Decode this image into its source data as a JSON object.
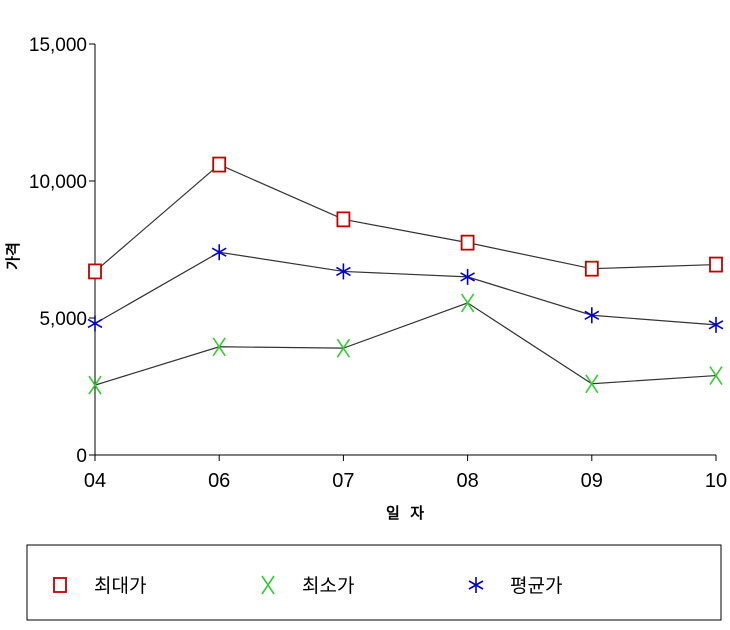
{
  "chart_data": {
    "type": "line",
    "xlabel": "일  자",
    "ylabel": "가격",
    "categories": [
      "04",
      "06",
      "07",
      "08",
      "09",
      "10"
    ],
    "yticks": [
      "0",
      "5,000",
      "10,000",
      "15,000"
    ],
    "ylim": [
      0,
      15000
    ],
    "grid": false,
    "legend_position": "bottom",
    "series": [
      {
        "name": "최대가",
        "marker": "square",
        "color": "#c00000",
        "values": [
          6700,
          10600,
          8600,
          7750,
          6800,
          6950
        ]
      },
      {
        "name": "최소가",
        "marker": "x",
        "color": "#33cc33",
        "values": [
          2550,
          3950,
          3900,
          5550,
          2600,
          2900
        ]
      },
      {
        "name": "평균가",
        "marker": "asterisk",
        "color": "#0000cc",
        "values": [
          4800,
          7400,
          6700,
          6500,
          5100,
          4750
        ]
      }
    ]
  }
}
